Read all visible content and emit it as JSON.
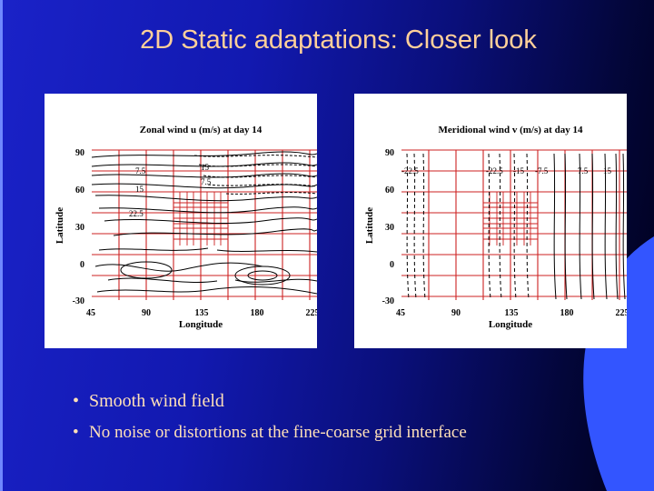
{
  "slide": {
    "title": "2D Static adaptations: Closer look",
    "bullets": [
      "Smooth wind field",
      "No noise or distortions at the fine-coarse grid interface"
    ],
    "colors": {
      "background": "#1a22c8",
      "title": "#ffd09a",
      "bullet_text": "#ffe0b8",
      "accent_shape": "#3355ff",
      "grid_lines": "#cc2222"
    }
  },
  "plots": [
    {
      "title": "Zonal wind u (m/s) at day 14",
      "xlabel": "Longitude",
      "ylabel": "Latitude",
      "xticks": [
        "45",
        "90",
        "135",
        "180",
        "225"
      ],
      "yticks": [
        "90",
        "60",
        "30",
        "0",
        "-30"
      ],
      "contour_labels": [
        "7.5",
        "15",
        "7.5",
        "15",
        "22.5"
      ]
    },
    {
      "title": "Meridional wind v (m/s) at day 14",
      "xlabel": "Longitude",
      "ylabel": "Latitude",
      "xticks": [
        "45",
        "90",
        "135",
        "180",
        "225"
      ],
      "yticks": [
        "90",
        "60",
        "30",
        "0",
        "-30"
      ],
      "contour_labels": [
        "-22.5",
        "-22.5",
        "-15",
        "-7.5",
        "7.5",
        "15"
      ]
    }
  ]
}
